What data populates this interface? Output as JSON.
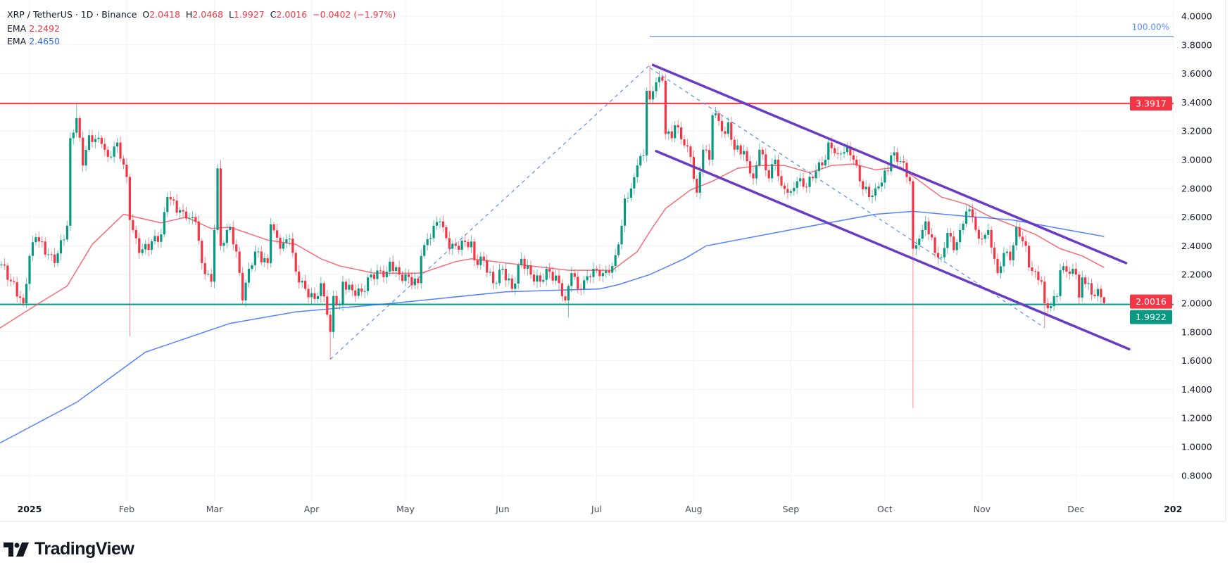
{
  "header": {
    "symbol": "XRP / TetherUS · 1D · Binance",
    "o_label": "O",
    "o": "2.0418",
    "h_label": "H",
    "h": "2.0468",
    "l_label": "L",
    "l": "1.9927",
    "c_label": "C",
    "c": "2.0016",
    "change": "−0.0402 (−1.97%)",
    "ema1_label": "EMA",
    "ema1": "2.2492",
    "ema2_label": "EMA",
    "ema2": "2.4650"
  },
  "brand": {
    "name": "TradingView"
  },
  "colors": {
    "up": "#089981",
    "down": "#f23645",
    "ema_fast": "#f7525f",
    "ema_slow": "#2962ff",
    "channel": "#6a3cc4",
    "fib": "#5b8cf5",
    "support": "#089981",
    "resistance": "#f23645"
  },
  "chart_data": {
    "type": "candlestick",
    "title": "XRP / TetherUS · 1D · Binance",
    "ylim": [
      0.7,
      4.1
    ],
    "y_ticks": [
      "4.0000",
      "3.8000",
      "3.6000",
      "3.4000",
      "3.2000",
      "3.0000",
      "2.8000",
      "2.6000",
      "2.4000",
      "2.2000",
      "2.0000",
      "1.8000",
      "1.6000",
      "1.4000",
      "1.2000",
      "1.0000",
      "0.8000"
    ],
    "x_ticks": [
      {
        "date": "2025-01-01",
        "label": "2025",
        "bold": true
      },
      {
        "date": "2025-02-01",
        "label": "Feb"
      },
      {
        "date": "2025-03-01",
        "label": "Mar"
      },
      {
        "date": "2025-04-01",
        "label": "Apr"
      },
      {
        "date": "2025-05-01",
        "label": "May"
      },
      {
        "date": "2025-06-01",
        "label": "Jun"
      },
      {
        "date": "2025-07-01",
        "label": "Jul"
      },
      {
        "date": "2025-08-01",
        "label": "Aug"
      },
      {
        "date": "2025-09-01",
        "label": "Sep"
      },
      {
        "date": "2025-10-01",
        "label": "Oct"
      },
      {
        "date": "2025-11-01",
        "label": "Nov"
      },
      {
        "date": "2025-12-01",
        "label": "Dec"
      },
      {
        "date": "2026-01-01",
        "label": "202",
        "bold": true
      }
    ],
    "close_path": [
      [
        "2024-12-23",
        2.27
      ],
      [
        "2024-12-30",
        2.0
      ],
      [
        "2025-01-01",
        2.33
      ],
      [
        "2025-01-03",
        2.46
      ],
      [
        "2025-01-09",
        2.28
      ],
      [
        "2025-01-13",
        2.54
      ],
      [
        "2025-01-14",
        3.15
      ],
      [
        "2025-01-16",
        3.29
      ],
      [
        "2025-01-18",
        2.96
      ],
      [
        "2025-01-20",
        3.17
      ],
      [
        "2025-01-24",
        3.11
      ],
      [
        "2025-01-26",
        3.02
      ],
      [
        "2025-01-29",
        3.12
      ],
      [
        "2025-02-01",
        2.88
      ],
      [
        "2025-02-02",
        2.58
      ],
      [
        "2025-02-05",
        2.35
      ],
      [
        "2025-02-12",
        2.48
      ],
      [
        "2025-02-14",
        2.74
      ],
      [
        "2025-02-20",
        2.59
      ],
      [
        "2025-02-23",
        2.57
      ],
      [
        "2025-02-25",
        2.28
      ],
      [
        "2025-02-28",
        2.15
      ],
      [
        "2025-03-02",
        2.94
      ],
      [
        "2025-03-03",
        2.4
      ],
      [
        "2025-03-05",
        2.51
      ],
      [
        "2025-03-06",
        2.53
      ],
      [
        "2025-03-08",
        2.36
      ],
      [
        "2025-03-10",
        2.02
      ],
      [
        "2025-03-12",
        2.24
      ],
      [
        "2025-03-14",
        2.36
      ],
      [
        "2025-03-18",
        2.28
      ],
      [
        "2025-03-19",
        2.55
      ],
      [
        "2025-03-22",
        2.38
      ],
      [
        "2025-03-25",
        2.45
      ],
      [
        "2025-03-27",
        2.22
      ],
      [
        "2025-03-30",
        2.1
      ],
      [
        "2025-04-02",
        2.03
      ],
      [
        "2025-04-04",
        2.14
      ],
      [
        "2025-04-06",
        1.92
      ],
      [
        "2025-04-07",
        1.8
      ],
      [
        "2025-04-08",
        2.05
      ],
      [
        "2025-04-10",
        1.99
      ],
      [
        "2025-04-11",
        2.15
      ],
      [
        "2025-04-14",
        2.09
      ],
      [
        "2025-04-17",
        2.08
      ],
      [
        "2025-04-20",
        2.2
      ],
      [
        "2025-04-25",
        2.22
      ],
      [
        "2025-04-26",
        2.29
      ],
      [
        "2025-04-29",
        2.2
      ],
      [
        "2025-05-05",
        2.14
      ],
      [
        "2025-05-06",
        2.33
      ],
      [
        "2025-05-10",
        2.54
      ],
      [
        "2025-05-12",
        2.57
      ],
      [
        "2025-05-15",
        2.38
      ],
      [
        "2025-05-17",
        2.4
      ],
      [
        "2025-05-22",
        2.43
      ],
      [
        "2025-05-23",
        2.3
      ],
      [
        "2025-05-26",
        2.3
      ],
      [
        "2025-05-29",
        2.14
      ],
      [
        "2025-06-01",
        2.24
      ],
      [
        "2025-06-04",
        2.1
      ],
      [
        "2025-06-07",
        2.31
      ],
      [
        "2025-06-10",
        2.2
      ],
      [
        "2025-06-13",
        2.15
      ],
      [
        "2025-06-15",
        2.24
      ],
      [
        "2025-06-19",
        2.14
      ],
      [
        "2025-06-21",
        2.02
      ],
      [
        "2025-06-22",
        2.12
      ],
      [
        "2025-06-23",
        2.21
      ],
      [
        "2025-06-25",
        2.1
      ],
      [
        "2025-06-27",
        2.16
      ],
      [
        "2025-06-30",
        2.24
      ],
      [
        "2025-07-03",
        2.21
      ],
      [
        "2025-07-06",
        2.26
      ],
      [
        "2025-07-08",
        2.41
      ],
      [
        "2025-07-09",
        2.54
      ],
      [
        "2025-07-10",
        2.73
      ],
      [
        "2025-07-12",
        2.8
      ],
      [
        "2025-07-14",
        2.96
      ],
      [
        "2025-07-16",
        3.03
      ],
      [
        "2025-07-17",
        3.48
      ],
      [
        "2025-07-18",
        3.42
      ],
      [
        "2025-07-20",
        3.54
      ],
      [
        "2025-07-22",
        3.55
      ],
      [
        "2025-07-23",
        3.18
      ],
      [
        "2025-07-25",
        3.15
      ],
      [
        "2025-07-26",
        3.24
      ],
      [
        "2025-07-29",
        3.1
      ],
      [
        "2025-07-31",
        3.02
      ],
      [
        "2025-08-02",
        2.77
      ],
      [
        "2025-08-04",
        3.07
      ],
      [
        "2025-08-06",
        3.0
      ],
      [
        "2025-08-07",
        3.31
      ],
      [
        "2025-08-09",
        3.27
      ],
      [
        "2025-08-11",
        3.18
      ],
      [
        "2025-08-12",
        3.26
      ],
      [
        "2025-08-14",
        3.07
      ],
      [
        "2025-08-15",
        3.1
      ],
      [
        "2025-08-18",
        2.99
      ],
      [
        "2025-08-20",
        2.87
      ],
      [
        "2025-08-22",
        3.07
      ],
      [
        "2025-08-25",
        2.87
      ],
      [
        "2025-08-27",
        3.0
      ],
      [
        "2025-08-29",
        2.82
      ],
      [
        "2025-09-01",
        2.78
      ],
      [
        "2025-09-03",
        2.85
      ],
      [
        "2025-09-06",
        2.81
      ],
      [
        "2025-09-09",
        2.92
      ],
      [
        "2025-09-12",
        3.0
      ],
      [
        "2025-09-13",
        3.12
      ],
      [
        "2025-09-16",
        3.04
      ],
      [
        "2025-09-19",
        3.09
      ],
      [
        "2025-09-21",
        3.0
      ],
      [
        "2025-09-23",
        2.85
      ],
      [
        "2025-09-26",
        2.74
      ],
      [
        "2025-09-28",
        2.8
      ],
      [
        "2025-10-02",
        2.92
      ],
      [
        "2025-10-03",
        3.03
      ],
      [
        "2025-10-06",
        2.99
      ],
      [
        "2025-10-09",
        2.85
      ],
      [
        "2025-10-10",
        2.38
      ],
      [
        "2025-10-13",
        2.51
      ],
      [
        "2025-10-14",
        2.57
      ],
      [
        "2025-10-17",
        2.35
      ],
      [
        "2025-10-19",
        2.32
      ],
      [
        "2025-10-21",
        2.49
      ],
      [
        "2025-10-23",
        2.37
      ],
      [
        "2025-10-25",
        2.51
      ],
      [
        "2025-10-27",
        2.64
      ],
      [
        "2025-10-29",
        2.6
      ],
      [
        "2025-10-31",
        2.45
      ],
      [
        "2025-11-03",
        2.51
      ],
      [
        "2025-11-05",
        2.31
      ],
      [
        "2025-11-06",
        2.21
      ],
      [
        "2025-11-08",
        2.35
      ],
      [
        "2025-11-10",
        2.3
      ],
      [
        "2025-11-12",
        2.53
      ],
      [
        "2025-11-15",
        2.4
      ],
      [
        "2025-11-16",
        2.25
      ],
      [
        "2025-11-18",
        2.22
      ],
      [
        "2025-11-20",
        2.15
      ],
      [
        "2025-11-21",
        2.0
      ],
      [
        "2025-11-23",
        1.98
      ],
      [
        "2025-11-25",
        2.05
      ],
      [
        "2025-11-26",
        2.23
      ],
      [
        "2025-11-28",
        2.22
      ],
      [
        "2025-12-01",
        2.2
      ],
      [
        "2025-12-02",
        2.04
      ],
      [
        "2025-12-03",
        2.18
      ],
      [
        "2025-12-05",
        2.14
      ],
      [
        "2025-12-06",
        2.06
      ],
      [
        "2025-12-07",
        2.05
      ],
      [
        "2025-12-08",
        2.1
      ],
      [
        "2025-12-09",
        2.0418
      ],
      [
        "2025-12-10",
        2.0016
      ]
    ],
    "last_candle": {
      "date": "2025-12-10",
      "open": 2.0418,
      "high": 2.0468,
      "low": 1.9927,
      "close": 2.0016
    },
    "extreme_wicks": [
      {
        "date": "2025-01-16",
        "high": 3.39
      },
      {
        "date": "2025-02-02",
        "low": 1.77
      },
      {
        "date": "2025-03-03",
        "high": 3.0
      },
      {
        "date": "2025-04-07",
        "low": 1.61
      },
      {
        "date": "2025-06-22",
        "low": 1.9
      },
      {
        "date": "2025-07-18",
        "high": 3.66
      },
      {
        "date": "2025-10-10",
        "low": 1.27
      },
      {
        "date": "2025-11-21",
        "low": 1.83
      }
    ],
    "series": [
      {
        "name": "EMA",
        "value": "2.2492",
        "color": "#f7525f",
        "points": [
          [
            "2024-12-22",
            1.82
          ],
          [
            "2025-01-04",
            2.0
          ],
          [
            "2025-01-13",
            2.12
          ],
          [
            "2025-01-21",
            2.41
          ],
          [
            "2025-01-31",
            2.62
          ],
          [
            "2025-02-12",
            2.56
          ],
          [
            "2025-02-20",
            2.6
          ],
          [
            "2025-02-28",
            2.52
          ],
          [
            "2025-03-06",
            2.53
          ],
          [
            "2025-03-18",
            2.44
          ],
          [
            "2025-03-27",
            2.41
          ],
          [
            "2025-04-04",
            2.31
          ],
          [
            "2025-04-10",
            2.26
          ],
          [
            "2025-04-21",
            2.21
          ],
          [
            "2025-05-06",
            2.21
          ],
          [
            "2025-05-17",
            2.29
          ],
          [
            "2025-05-22",
            2.31
          ],
          [
            "2025-06-06",
            2.27
          ],
          [
            "2025-06-22",
            2.23
          ],
          [
            "2025-07-06",
            2.23
          ],
          [
            "2025-07-14",
            2.36
          ],
          [
            "2025-07-18",
            2.5
          ],
          [
            "2025-07-23",
            2.66
          ],
          [
            "2025-07-31",
            2.79
          ],
          [
            "2025-08-07",
            2.85
          ],
          [
            "2025-08-15",
            2.94
          ],
          [
            "2025-08-22",
            2.96
          ],
          [
            "2025-08-30",
            2.96
          ],
          [
            "2025-09-07",
            2.91
          ],
          [
            "2025-09-14",
            2.96
          ],
          [
            "2025-09-21",
            2.97
          ],
          [
            "2025-09-28",
            2.93
          ],
          [
            "2025-10-06",
            2.95
          ],
          [
            "2025-10-19",
            2.74
          ],
          [
            "2025-10-27",
            2.69
          ],
          [
            "2025-11-03",
            2.61
          ],
          [
            "2025-11-18",
            2.48
          ],
          [
            "2025-11-26",
            2.38
          ],
          [
            "2025-12-03",
            2.33
          ],
          [
            "2025-12-10",
            2.2492
          ]
        ]
      },
      {
        "name": "EMA",
        "value": "2.4650",
        "color": "#2962ff",
        "points": [
          [
            "2024-12-22",
            1.02
          ],
          [
            "2025-01-16",
            1.31
          ],
          [
            "2025-02-07",
            1.66
          ],
          [
            "2025-03-06",
            1.86
          ],
          [
            "2025-03-27",
            1.94
          ],
          [
            "2025-04-27",
            2.0
          ],
          [
            "2025-06-02",
            2.08
          ],
          [
            "2025-07-02",
            2.1
          ],
          [
            "2025-07-08",
            2.13
          ],
          [
            "2025-07-18",
            2.2
          ],
          [
            "2025-07-29",
            2.31
          ],
          [
            "2025-08-05",
            2.4
          ],
          [
            "2025-09-03",
            2.52
          ],
          [
            "2025-09-28",
            2.62
          ],
          [
            "2025-10-10",
            2.64
          ],
          [
            "2025-10-25",
            2.61
          ],
          [
            "2025-11-11",
            2.58
          ],
          [
            "2025-11-26",
            2.52
          ],
          [
            "2025-12-10",
            2.465
          ]
        ]
      }
    ],
    "horizontal_lines": [
      {
        "price": 3.3917,
        "label": "3.3917",
        "color": "#f23645"
      },
      {
        "price": 1.9922,
        "label": "1.9922",
        "color": "#089981"
      }
    ],
    "last_price_label": {
      "price": 2.0016,
      "label": "2.0016",
      "color": "#f23645"
    },
    "channel": {
      "upper": [
        [
          "2025-07-19",
          3.66
        ],
        [
          "2025-12-17",
          2.28
        ]
      ],
      "lower": [
        [
          "2025-07-20",
          3.06
        ],
        [
          "2025-12-18",
          1.68
        ]
      ]
    },
    "fib": {
      "legs": [
        [
          [
            "2025-04-07",
            1.61
          ],
          [
            "2025-07-18",
            3.66
          ]
        ],
        [
          [
            "2025-07-18",
            3.64
          ],
          [
            "2025-11-21",
            1.83
          ]
        ]
      ],
      "level": {
        "price": 3.86,
        "label": "100.00%",
        "from": "2025-07-18",
        "to": "2026-01-01"
      }
    },
    "grid": true
  }
}
